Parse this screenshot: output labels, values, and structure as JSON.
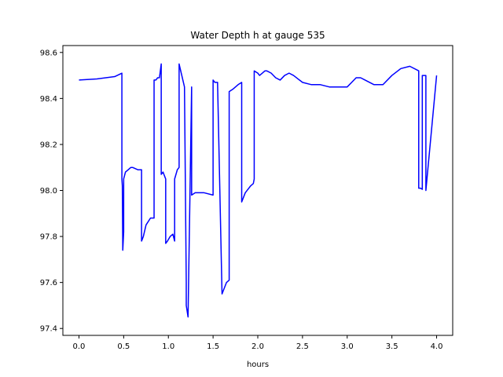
{
  "chart_data": {
    "type": "line",
    "title": "Water Depth h at gauge 535",
    "xlabel": "hours",
    "ylabel": "",
    "xlim": [
      -0.18,
      4.18
    ],
    "ylim": [
      97.37,
      98.63
    ],
    "x_ticks": [
      0.0,
      0.5,
      1.0,
      1.5,
      2.0,
      2.5,
      3.0,
      3.5,
      4.0
    ],
    "x_tick_labels": [
      "0.0",
      "0.5",
      "1.0",
      "1.5",
      "2.0",
      "2.5",
      "3.0",
      "3.5",
      "4.0"
    ],
    "y_ticks": [
      97.4,
      97.6,
      97.8,
      98.0,
      98.2,
      98.4,
      98.6
    ],
    "y_tick_labels": [
      "97.4",
      "97.6",
      "97.8",
      "98.0",
      "98.2",
      "98.4",
      "98.6"
    ],
    "grid": false,
    "line_color": "#0000ff",
    "series": [
      {
        "name": "",
        "x": [
          0.0,
          0.2,
          0.4,
          0.48,
          0.48,
          0.485,
          0.49,
          0.495,
          0.5,
          0.5,
          0.52,
          0.55,
          0.58,
          0.6,
          0.63,
          0.66,
          0.68,
          0.7,
          0.7,
          0.72,
          0.75,
          0.8,
          0.84,
          0.84,
          0.86,
          0.88,
          0.9,
          0.92,
          0.92,
          0.94,
          0.95,
          0.96,
          0.97,
          0.97,
          0.99,
          1.02,
          1.05,
          1.07,
          1.07,
          1.1,
          1.12,
          1.12,
          1.15,
          1.18,
          1.2,
          1.2,
          1.22,
          1.26,
          1.26,
          1.3,
          1.35,
          1.4,
          1.5,
          1.5,
          1.52,
          1.55,
          1.6,
          1.65,
          1.68,
          1.68,
          1.72,
          1.78,
          1.82,
          1.82,
          1.86,
          1.9,
          1.92,
          1.95,
          1.96,
          1.96,
          2.0,
          2.02,
          2.05,
          2.08,
          2.1,
          2.15,
          2.2,
          2.25,
          2.3,
          2.35,
          2.4,
          2.5,
          2.6,
          2.7,
          2.8,
          2.9,
          3.0,
          3.05,
          3.1,
          3.15,
          3.2,
          3.3,
          3.4,
          3.5,
          3.6,
          3.7,
          3.8,
          3.8,
          3.82,
          3.84,
          3.84,
          3.86,
          3.88,
          3.88,
          4.0
        ],
        "y": [
          98.48,
          98.485,
          98.495,
          98.51,
          98.05,
          98.02,
          97.74,
          97.78,
          97.82,
          98.05,
          98.08,
          98.09,
          98.1,
          98.1,
          98.095,
          98.09,
          98.09,
          98.09,
          97.78,
          97.8,
          97.85,
          97.88,
          97.88,
          98.48,
          98.48,
          98.49,
          98.49,
          98.55,
          98.07,
          98.08,
          98.07,
          98.06,
          98.05,
          97.77,
          97.78,
          97.8,
          97.81,
          97.78,
          98.05,
          98.09,
          98.1,
          98.55,
          98.5,
          98.45,
          97.6,
          97.5,
          97.45,
          98.45,
          97.98,
          97.99,
          97.99,
          97.99,
          97.98,
          98.48,
          98.47,
          98.47,
          97.55,
          97.6,
          97.61,
          98.43,
          98.44,
          98.46,
          98.47,
          97.95,
          97.99,
          98.01,
          98.02,
          98.03,
          98.05,
          98.52,
          98.51,
          98.5,
          98.51,
          98.52,
          98.52,
          98.51,
          98.49,
          98.48,
          98.5,
          98.51,
          98.5,
          98.47,
          98.46,
          98.46,
          98.45,
          98.45,
          98.45,
          98.47,
          98.49,
          98.49,
          98.48,
          98.46,
          98.46,
          98.5,
          98.53,
          98.54,
          98.52,
          98.01,
          98.01,
          98.005,
          98.5,
          98.5,
          98.5,
          98.0,
          98.5
        ]
      }
    ]
  }
}
